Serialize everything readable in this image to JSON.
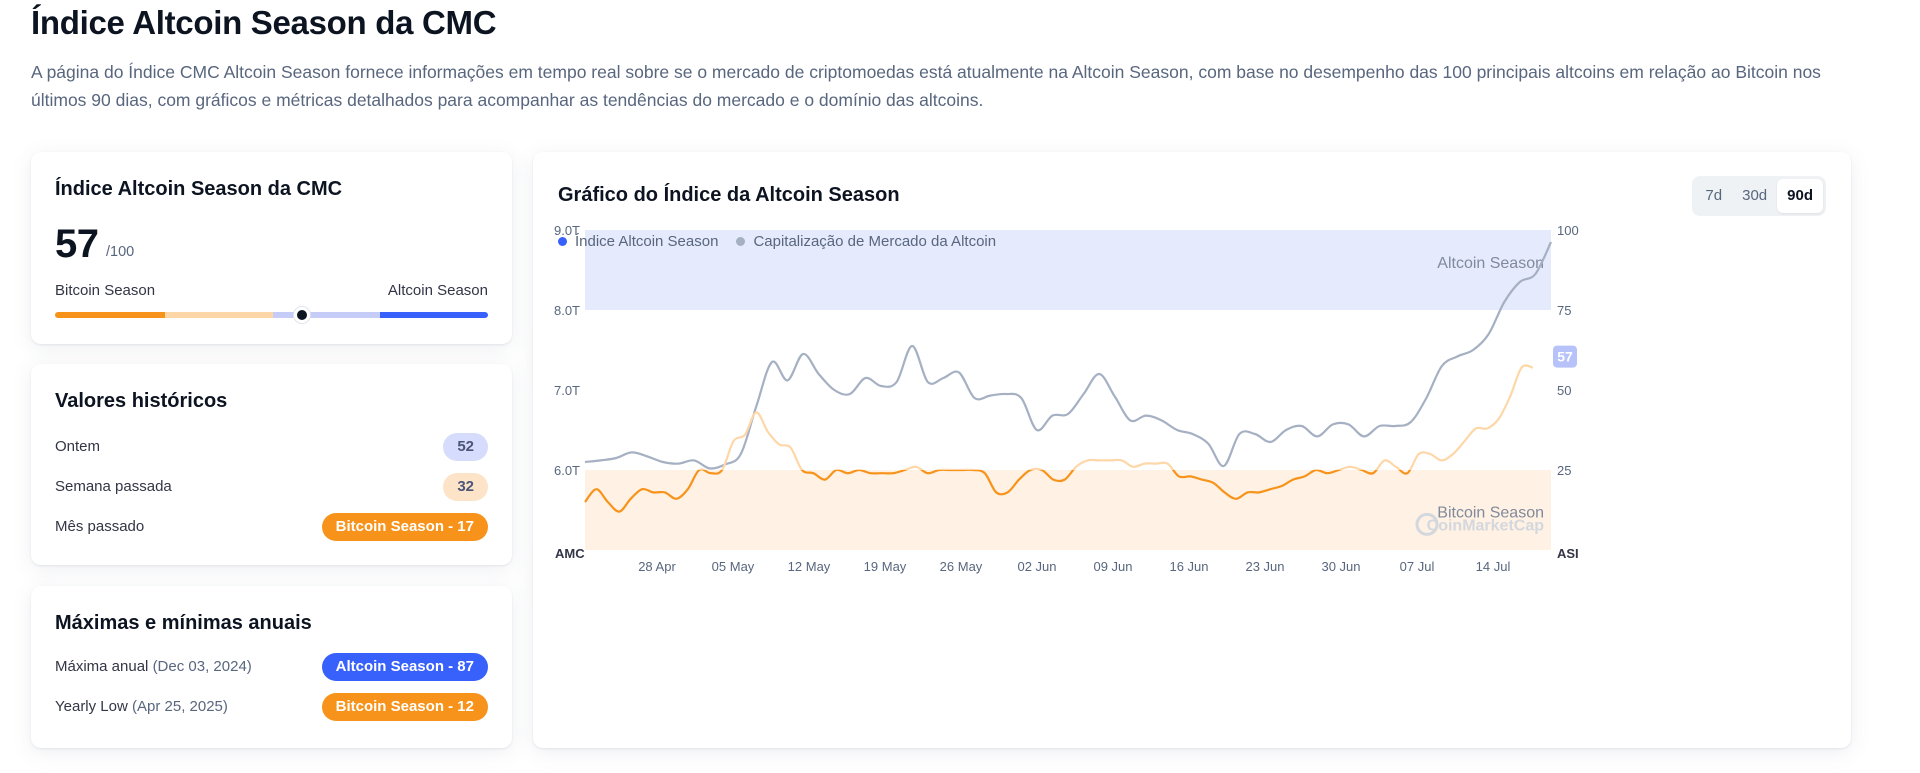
{
  "page": {
    "title": "Índice Altcoin Season da CMC",
    "description": "A página do Índice CMC Altcoin Season fornece informações em tempo real sobre se o mercado de criptomoedas está atualmente na Altcoin Season, com base no desempenho das 100 principais altcoins em relação ao Bitcoin nos últimos 90 dias, com gráficos e métricas detalhados para acompanhar as tendências do mercado e o domínio das altcoins."
  },
  "index_card": {
    "title": "Índice Altcoin Season da CMC",
    "value": "57",
    "max": "/100",
    "left_label": "Bitcoin Season",
    "right_label": "Altcoin Season",
    "position_fraction": 0.57
  },
  "historical": {
    "title": "Valores históricos",
    "rows": [
      {
        "label": "Ontem",
        "value": "52",
        "style": "blue-light"
      },
      {
        "label": "Semana passada",
        "value": "32",
        "style": "orange-light"
      },
      {
        "label": "Mês passado",
        "value": "Bitcoin Season - 17",
        "style": "orange"
      }
    ]
  },
  "yearly": {
    "title": "Máximas e mínimas anuais",
    "high": {
      "label": "Máxima anual",
      "date": "(Dec 03, 2024)",
      "value": "Altcoin Season - 87"
    },
    "low": {
      "label": "Yearly Low",
      "date": "(Apr 25, 2025)",
      "value": "Bitcoin Season - 12"
    }
  },
  "chart_card": {
    "title": "Gráfico do Índice da Altcoin Season",
    "ranges": [
      "7d",
      "30d",
      "90d"
    ],
    "active_range": "90d",
    "legend": [
      {
        "label": "Índice Altcoin Season",
        "color": "#3861fb"
      },
      {
        "label": "Capitalização de Mercado da Altcoin",
        "color": "#a6b0c3"
      }
    ],
    "zone_altcoin_label": "Altcoin Season",
    "zone_bitcoin_label": "Bitcoin Season",
    "watermark": "CoinMarketCap",
    "current_badge": "57"
  },
  "chart_data": {
    "type": "line",
    "x_tick_labels": [
      "28 Apr",
      "05 May",
      "12 May",
      "19 May",
      "26 May",
      "02 Jun",
      "09 Jun",
      "16 Jun",
      "23 Jun",
      "30 Jun",
      "07 Jul",
      "14 Jul"
    ],
    "left_axis": {
      "label": "AMC",
      "ticks": [
        "6.0T",
        "7.0T",
        "8.0T",
        "9.0T"
      ],
      "range": [
        5.0,
        9.0
      ]
    },
    "right_axis": {
      "label": "ASI",
      "ticks": [
        "25",
        "50",
        "75",
        "100"
      ],
      "range": [
        0,
        100
      ]
    },
    "zones": {
      "altcoin_season_from": 75,
      "bitcoin_season_to": 25
    },
    "series": [
      {
        "name": "Índice Altcoin Season",
        "axis": "right",
        "color_below": "#f7931a",
        "color_above": "#fdd7a8",
        "values": [
          15,
          19,
          15,
          12,
          16,
          19,
          18,
          18,
          16,
          19,
          25,
          24,
          25,
          34,
          36,
          43,
          37,
          33,
          32,
          25,
          24,
          22,
          25,
          24,
          25,
          24,
          24,
          24,
          25,
          26,
          24,
          25,
          25,
          25,
          25,
          24,
          18,
          18,
          22,
          25,
          25,
          22,
          22,
          26,
          28,
          28,
          28,
          28,
          26,
          27,
          27,
          27,
          23,
          23,
          22,
          21,
          18,
          16,
          18,
          18,
          19,
          20,
          22,
          23,
          25,
          24,
          25,
          26,
          25,
          24,
          28,
          26,
          24,
          30,
          30,
          28,
          30,
          34,
          38,
          38,
          41,
          48,
          57,
          57
        ]
      },
      {
        "name": "Capitalização de Mercado da Altcoin",
        "axis": "left",
        "color": "#a6b0c3",
        "values": [
          6.1,
          6.12,
          6.15,
          6.22,
          6.17,
          6.1,
          6.08,
          6.12,
          6.02,
          6.07,
          6.2,
          6.8,
          7.35,
          7.12,
          7.45,
          7.2,
          7.0,
          6.95,
          7.15,
          7.05,
          7.1,
          7.55,
          7.1,
          7.15,
          7.22,
          6.9,
          6.93,
          6.95,
          6.9,
          6.5,
          6.68,
          6.7,
          6.95,
          7.2,
          6.92,
          6.62,
          6.68,
          6.62,
          6.5,
          6.45,
          6.33,
          6.05,
          6.45,
          6.45,
          6.35,
          6.5,
          6.55,
          6.42,
          6.57,
          6.57,
          6.42,
          6.55,
          6.55,
          6.6,
          6.9,
          7.3,
          7.42,
          7.5,
          7.7,
          8.1,
          8.35,
          8.45,
          8.85
        ]
      }
    ]
  }
}
